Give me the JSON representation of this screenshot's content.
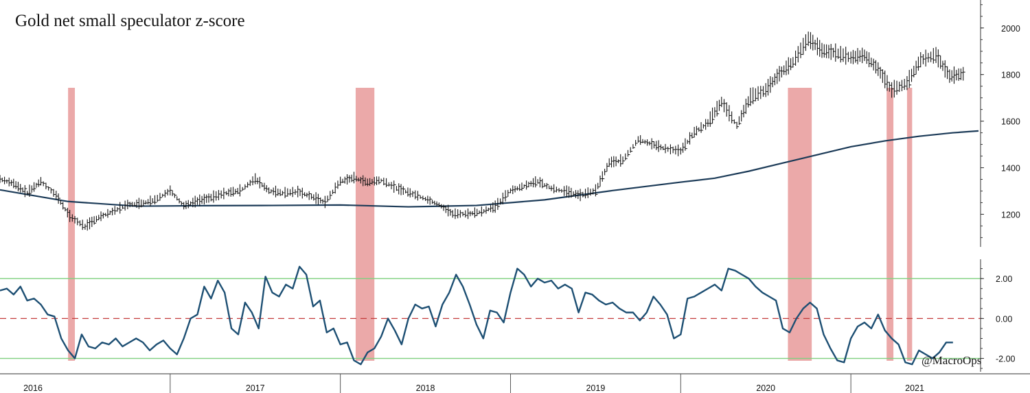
{
  "chart_data": [
    {
      "type": "line",
      "title": "Gold net small speculator z-score",
      "credit": "@MacroOps",
      "ylim": [
        1060,
        2120
      ],
      "yticks": [
        1200,
        1400,
        1600,
        1800,
        2000
      ],
      "grid": false,
      "x_years": [
        "2016",
        "2017",
        "2018",
        "2019",
        "2020",
        "2021"
      ],
      "xlim": [
        2016.0,
        2021.75
      ],
      "series": [
        {
          "role": "price_weekly_bars",
          "color": "#111111",
          "x": [
            2016.0,
            2016.08,
            2016.16,
            2016.24,
            2016.33,
            2016.41,
            2016.5,
            2016.58,
            2016.66,
            2016.75,
            2016.83,
            2016.91,
            2017.0,
            2017.08,
            2017.16,
            2017.24,
            2017.33,
            2017.41,
            2017.5,
            2017.58,
            2017.66,
            2017.75,
            2017.83,
            2017.91,
            2018.0,
            2018.08,
            2018.16,
            2018.24,
            2018.33,
            2018.41,
            2018.5,
            2018.58,
            2018.66,
            2018.75,
            2018.83,
            2018.91,
            2019.0,
            2019.08,
            2019.16,
            2019.24,
            2019.33,
            2019.41,
            2019.5,
            2019.58,
            2019.66,
            2019.75,
            2019.83,
            2019.91,
            2020.0,
            2020.08,
            2020.16,
            2020.24,
            2020.33,
            2020.41,
            2020.5,
            2020.58,
            2020.66,
            2020.75,
            2020.83,
            2020.91,
            2021.0,
            2021.08,
            2021.16,
            2021.24,
            2021.33,
            2021.41,
            2021.5,
            2021.58,
            2021.66
          ],
          "values": [
            1350,
            1330,
            1290,
            1340,
            1280,
            1190,
            1145,
            1185,
            1210,
            1240,
            1245,
            1260,
            1300,
            1235,
            1255,
            1270,
            1290,
            1300,
            1350,
            1300,
            1290,
            1295,
            1275,
            1250,
            1340,
            1355,
            1335,
            1345,
            1310,
            1290,
            1265,
            1240,
            1200,
            1200,
            1210,
            1230,
            1300,
            1320,
            1340,
            1310,
            1295,
            1280,
            1300,
            1420,
            1430,
            1520,
            1500,
            1480,
            1470,
            1550,
            1590,
            1680,
            1580,
            1700,
            1730,
            1800,
            1850,
            1950,
            1900,
            1890,
            1870,
            1880,
            1820,
            1730,
            1760,
            1860,
            1880,
            1790,
            1800
          ]
        },
        {
          "role": "moving_average",
          "color": "#1b3a57",
          "x": [
            2016.0,
            2016.4,
            2016.8,
            2017.2,
            2017.6,
            2018.0,
            2018.4,
            2018.8,
            2019.2,
            2019.6,
            2020.0,
            2020.2,
            2020.4,
            2020.6,
            2020.8,
            2021.0,
            2021.2,
            2021.4,
            2021.6,
            2021.75
          ],
          "values": [
            1305,
            1255,
            1235,
            1237,
            1238,
            1240,
            1232,
            1238,
            1262,
            1302,
            1338,
            1355,
            1385,
            1420,
            1455,
            1490,
            1515,
            1535,
            1550,
            1558
          ]
        },
        {
          "role": "zscore",
          "color": "#1d4f73",
          "x": [
            2016.0,
            2016.04,
            2016.08,
            2016.12,
            2016.16,
            2016.2,
            2016.24,
            2016.28,
            2016.32,
            2016.36,
            2016.4,
            2016.44,
            2016.48,
            2016.52,
            2016.56,
            2016.6,
            2016.64,
            2016.68,
            2016.72,
            2016.76,
            2016.8,
            2016.84,
            2016.88,
            2016.92,
            2016.96,
            2017.0,
            2017.04,
            2017.08,
            2017.12,
            2017.16,
            2017.2,
            2017.24,
            2017.28,
            2017.32,
            2017.36,
            2017.4,
            2017.44,
            2017.48,
            2017.52,
            2017.56,
            2017.6,
            2017.64,
            2017.68,
            2017.72,
            2017.76,
            2017.8,
            2017.84,
            2017.88,
            2017.92,
            2017.96,
            2018.0,
            2018.04,
            2018.08,
            2018.12,
            2018.16,
            2018.2,
            2018.24,
            2018.28,
            2018.32,
            2018.36,
            2018.4,
            2018.44,
            2018.48,
            2018.52,
            2018.56,
            2018.6,
            2018.64,
            2018.68,
            2018.72,
            2018.76,
            2018.8,
            2018.84,
            2018.88,
            2018.92,
            2018.96,
            2019.0,
            2019.04,
            2019.08,
            2019.12,
            2019.16,
            2019.2,
            2019.24,
            2019.28,
            2019.32,
            2019.36,
            2019.4,
            2019.44,
            2019.48,
            2019.52,
            2019.56,
            2019.6,
            2019.64,
            2019.68,
            2019.72,
            2019.76,
            2019.8,
            2019.84,
            2019.88,
            2019.92,
            2019.96,
            2020.0,
            2020.04,
            2020.08,
            2020.12,
            2020.16,
            2020.2,
            2020.24,
            2020.28,
            2020.32,
            2020.36,
            2020.4,
            2020.44,
            2020.48,
            2020.52,
            2020.56,
            2020.6,
            2020.64,
            2020.68,
            2020.72,
            2020.76,
            2020.8,
            2020.84,
            2020.88,
            2020.92,
            2020.96,
            2021.0,
            2021.04,
            2021.08,
            2021.12,
            2021.16,
            2021.2,
            2021.24,
            2021.28,
            2021.32,
            2021.36,
            2021.4,
            2021.44,
            2021.48,
            2021.52,
            2021.56,
            2021.6
          ],
          "values": [
            1.4,
            1.5,
            1.2,
            1.6,
            0.9,
            1.0,
            0.7,
            0.2,
            0.1,
            -1.0,
            -1.6,
            -2.0,
            -0.8,
            -1.4,
            -1.5,
            -1.2,
            -1.3,
            -1.0,
            -1.4,
            -1.2,
            -1.0,
            -1.2,
            -1.6,
            -1.3,
            -1.1,
            -1.5,
            -1.8,
            -1.0,
            0.0,
            0.2,
            1.6,
            1.0,
            1.9,
            1.3,
            -0.5,
            -0.8,
            0.8,
            0.3,
            -0.5,
            2.1,
            1.3,
            1.1,
            1.7,
            1.5,
            2.6,
            2.2,
            0.6,
            0.9,
            -0.7,
            -0.5,
            -1.3,
            -1.2,
            -2.1,
            -2.3,
            -1.7,
            -1.5,
            -0.9,
            0.0,
            -0.6,
            -1.3,
            0.0,
            0.7,
            0.5,
            0.6,
            -0.4,
            0.7,
            1.3,
            2.2,
            1.6,
            0.7,
            -0.3,
            -1.0,
            0.4,
            0.3,
            -0.2,
            1.3,
            2.5,
            2.2,
            1.6,
            2.0,
            1.8,
            1.9,
            1.5,
            1.7,
            1.5,
            0.3,
            1.3,
            1.2,
            0.9,
            0.7,
            0.8,
            0.5,
            0.3,
            0.3,
            -0.1,
            0.3,
            1.1,
            0.7,
            0.2,
            -1.0,
            -0.8,
            1.0,
            1.1,
            1.3,
            1.5,
            1.7,
            1.4,
            2.5,
            2.4,
            2.2,
            2.0,
            1.6,
            1.3,
            1.1,
            0.9,
            -0.5,
            -0.7,
            0.0,
            0.5,
            0.8,
            0.5,
            -0.8,
            -1.5,
            -2.1,
            -2.2,
            -1.0,
            -0.4,
            -0.2,
            -0.5,
            0.2,
            -0.6,
            -1.0,
            -1.3,
            -2.2,
            -2.3,
            -1.6,
            -1.8,
            -2.0,
            -1.7,
            -1.2,
            -1.2
          ]
        }
      ],
      "reference_lines": [
        {
          "y": 2.0,
          "style": "solid",
          "color": "#7fd07f"
        },
        {
          "y": 0.0,
          "style": "dashed",
          "color": "#c33a3a"
        },
        {
          "y": -2.0,
          "style": "solid",
          "color": "#7fd07f"
        }
      ],
      "highlight_regions": [
        {
          "x0": 2016.4,
          "x1": 2016.44,
          "color": "#e89a9a"
        },
        {
          "x0": 2018.09,
          "x1": 2018.2,
          "color": "#e89a9a"
        },
        {
          "x0": 2020.63,
          "x1": 2020.77,
          "color": "#e89a9a"
        },
        {
          "x0": 2021.21,
          "x1": 2021.25,
          "color": "#e89a9a"
        },
        {
          "x0": 2021.33,
          "x1": 2021.36,
          "color": "#e89a9a"
        }
      ],
      "zscore_ylim": [
        -2.6,
        2.9
      ],
      "zscore_yticks": [
        -2.0,
        0.0,
        2.0
      ],
      "zscore_tick_labels": [
        "-2.00",
        "0.00",
        "2.00"
      ]
    }
  ]
}
